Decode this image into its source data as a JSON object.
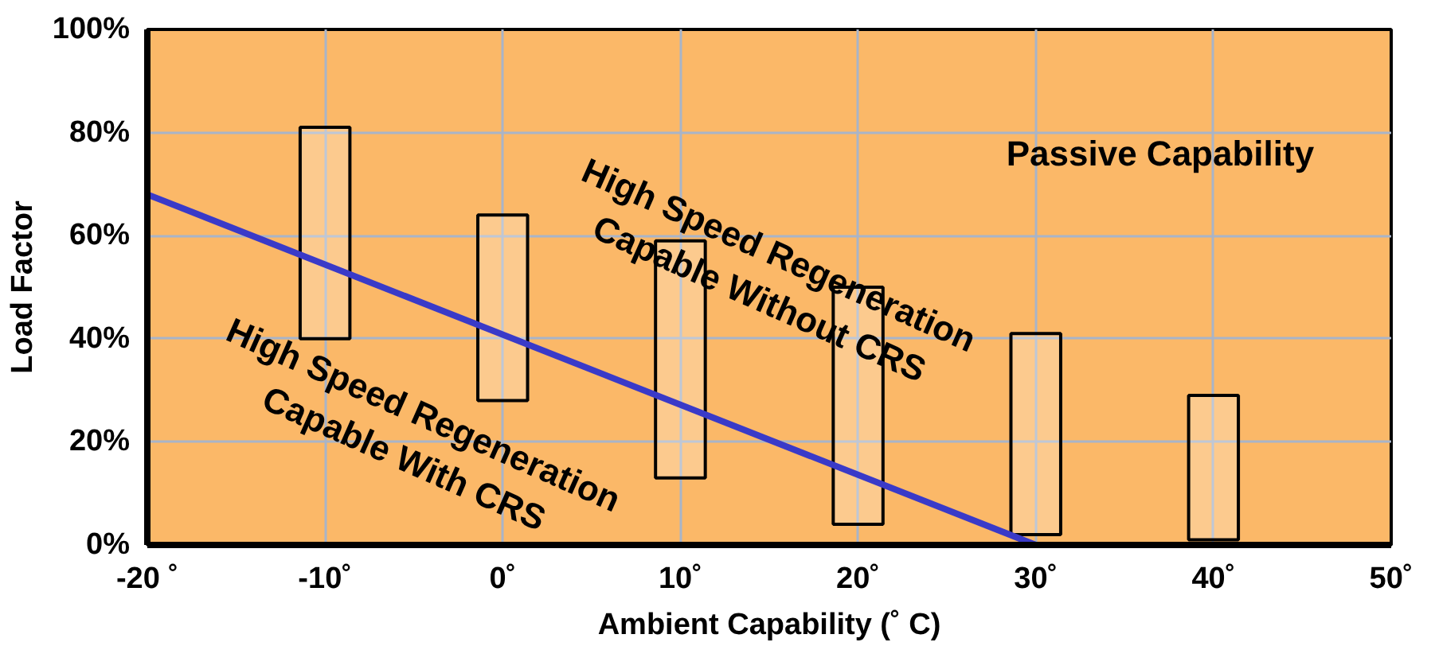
{
  "chart_data": {
    "type": "bar",
    "xlabel": "Ambient Capability (˚ C)",
    "ylabel": "Load Factor",
    "xlim": [
      -20,
      50
    ],
    "ylim": [
      0,
      100
    ],
    "xticks": [
      {
        "value": -20,
        "label": "-20 ˚"
      },
      {
        "value": -10,
        "label": "-10˚"
      },
      {
        "value": 0,
        "label": "0˚"
      },
      {
        "value": 10,
        "label": "10˚"
      },
      {
        "value": 20,
        "label": "20˚"
      },
      {
        "value": 30,
        "label": "30˚"
      },
      {
        "value": 40,
        "label": "40˚"
      },
      {
        "value": 50,
        "label": "50˚"
      }
    ],
    "yticks": [
      {
        "value": 0,
        "label": "0%"
      },
      {
        "value": 20,
        "label": "20%"
      },
      {
        "value": 40,
        "label": "40%"
      },
      {
        "value": 60,
        "label": "60%"
      },
      {
        "value": 80,
        "label": "80%"
      },
      {
        "value": 100,
        "label": "100%"
      }
    ],
    "grid": true,
    "series": [
      {
        "color": "#ffffff",
        "x": [
          -10,
          0,
          10,
          20,
          30,
          40
        ],
        "base": [
          40,
          28,
          13,
          4,
          2,
          1
        ],
        "values": [
          41,
          36,
          46,
          46,
          39,
          28
        ]
      },
      {
        "type": "line",
        "color": "#3a3ac8",
        "x": [
          -20,
          30
        ],
        "values": [
          68,
          0
        ]
      }
    ],
    "annotations": [
      "High Speed Regeneration\nCapable Without CRS",
      "High Speed Regeneration\nCapable With CRS",
      "Passive Capability"
    ]
  }
}
